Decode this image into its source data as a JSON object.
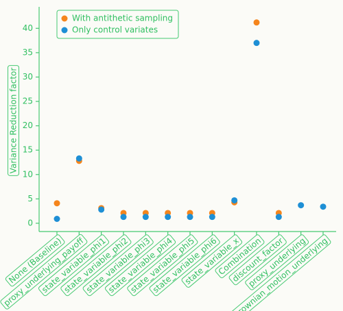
{
  "chart_data": {
    "type": "scatter",
    "y_label": "Variance Reduction factor",
    "categories": [
      "None (Baseline)",
      "proxy_underlying_payoff",
      "state_variable_phi1",
      "state_variable_phi2",
      "state_variable_phi3",
      "state_variable_phi4",
      "state_variable_phi5",
      "state_variable_phi6",
      "state_variable_x",
      "Combination",
      "discount_factor",
      "proxy_underlying",
      "brownian_motion_underlying"
    ],
    "series": [
      {
        "name": "With antithetic sampling",
        "color": "#f5851c",
        "values": [
          4.1,
          12.8,
          3.1,
          2.1,
          2.1,
          2.1,
          2.1,
          2.1,
          4.3,
          41.2,
          2.1,
          null,
          null
        ]
      },
      {
        "name": "Only control variates",
        "color": "#1e8fd5",
        "values": [
          0.9,
          13.3,
          2.8,
          1.3,
          1.3,
          1.3,
          1.3,
          1.3,
          4.7,
          37,
          1.3,
          3.7,
          3.4
        ]
      }
    ],
    "ylim": [
      -1.7,
      43.7
    ],
    "yticks": [
      0,
      5,
      10,
      15,
      20,
      25,
      30,
      35,
      40
    ],
    "legend": "upper left",
    "grid": false
  }
}
